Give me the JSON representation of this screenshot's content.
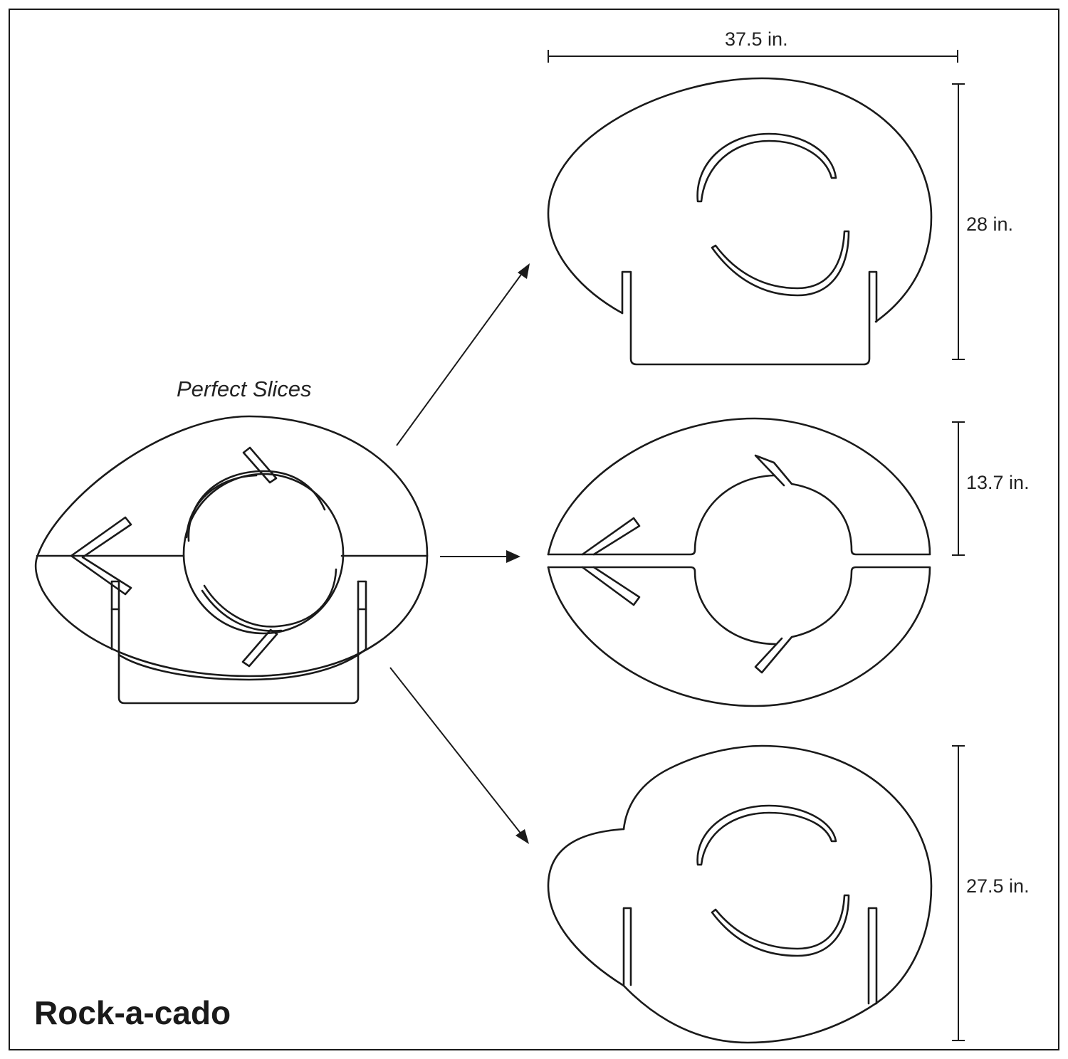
{
  "diagram": {
    "title": "Rock-a-cado",
    "subtitle": "Perfect Slices",
    "dimensions": {
      "width_top": "37.5 in.",
      "height_top": "28 in.",
      "height_middle": "13.7 in.",
      "height_bottom": "27.5 in."
    }
  },
  "colors": {
    "line": "#1a1a1a",
    "background": "#ffffff",
    "text": "#222222"
  }
}
